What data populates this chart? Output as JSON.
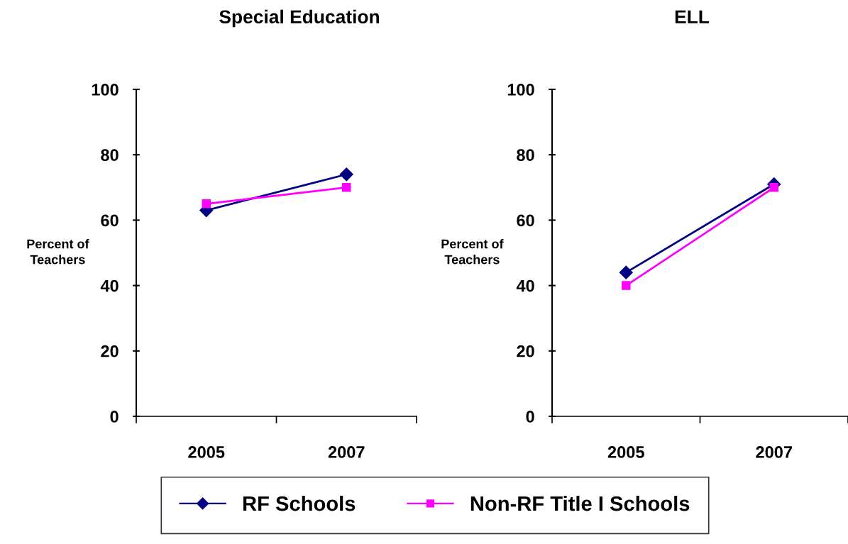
{
  "chart_data": [
    {
      "type": "line",
      "title": "Special Education",
      "ylabel": "Percent of\nTeachers",
      "categories": [
        "2005",
        "2007"
      ],
      "ylim": [
        0,
        100
      ],
      "yticks": [
        0,
        20,
        40,
        60,
        80,
        100
      ],
      "grid": false,
      "legend": "bottom",
      "series": [
        {
          "name": "RF Schools",
          "color": "#000080",
          "marker": "diamond",
          "values": [
            63,
            74
          ]
        },
        {
          "name": "Non-RF Title I Schools",
          "color": "#ff00ff",
          "marker": "square",
          "values": [
            65,
            70
          ]
        }
      ]
    },
    {
      "type": "line",
      "title": "ELL",
      "ylabel": "Percent of\nTeachers",
      "categories": [
        "2005",
        "2007"
      ],
      "ylim": [
        0,
        100
      ],
      "yticks": [
        0,
        20,
        40,
        60,
        80,
        100
      ],
      "grid": false,
      "series": [
        {
          "color": "#000080",
          "marker": "diamond",
          "values": [
            44,
            71
          ]
        },
        {
          "color": "#ff00ff",
          "marker": "square",
          "values": [
            40,
            70
          ]
        }
      ]
    }
  ]
}
